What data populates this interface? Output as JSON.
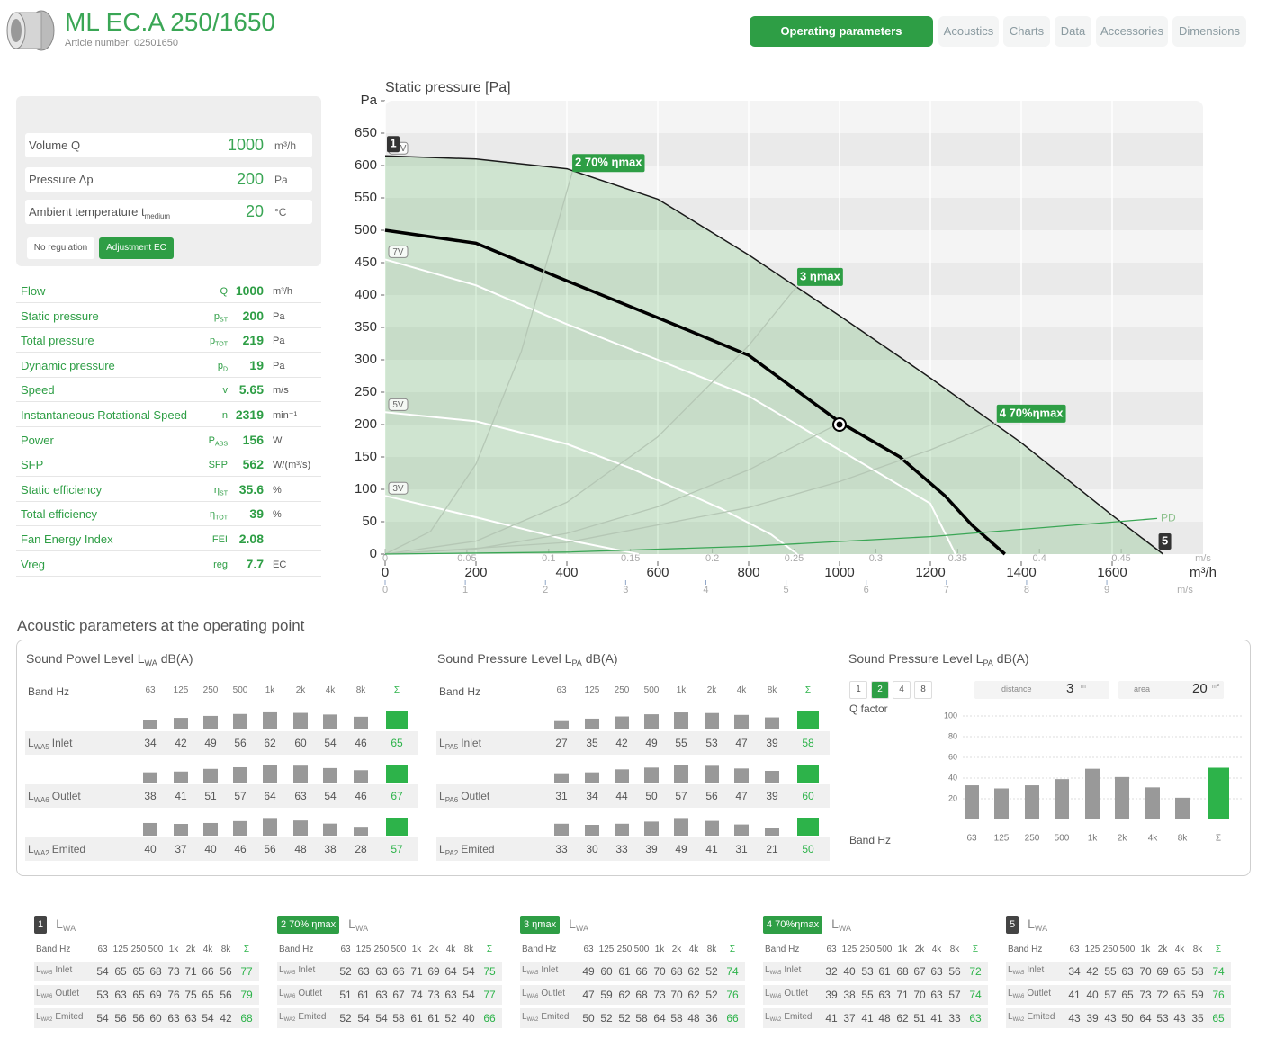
{
  "header": {
    "title": "ML EC.A 250/1650",
    "article": "Article number: 02501650"
  },
  "tabs": [
    {
      "label": "Operating parameters",
      "active": true
    },
    {
      "label": "Acoustics"
    },
    {
      "label": "Charts"
    },
    {
      "label": "Data"
    },
    {
      "label": "Accessories"
    },
    {
      "label": "Dimensions"
    }
  ],
  "inputs": [
    {
      "label": "Volume Q",
      "value": 1000,
      "unit": "m³/h"
    },
    {
      "label": "Pressure Δp",
      "value": 200,
      "unit": "Pa"
    },
    {
      "label": "Ambient temperature t",
      "label_sub": "medium",
      "value": 20,
      "unit": "°C"
    }
  ],
  "regulation": [
    {
      "label": "No regulation"
    },
    {
      "label": "Adjustment EC",
      "active": true
    }
  ],
  "params": [
    {
      "name": "Flow",
      "symbol": "Q",
      "value": 1000,
      "unit": "m³/h"
    },
    {
      "name": "Static pressure",
      "symbol": "p",
      "symbol_sub": "ST",
      "value": 200,
      "unit": "Pa"
    },
    {
      "name": "Total pressure",
      "symbol": "p",
      "symbol_sub": "TOT",
      "value": 219,
      "unit": "Pa"
    },
    {
      "name": "Dynamic pressure",
      "symbol": "p",
      "symbol_sub": "D",
      "value": 19,
      "unit": "Pa"
    },
    {
      "name": "Speed",
      "symbol": "v",
      "value": 5.65,
      "unit": "m/s"
    },
    {
      "name": "Instantaneous Rotational Speed",
      "symbol": "n",
      "value": 2319,
      "unit": "min⁻¹"
    },
    {
      "name": "Power",
      "symbol": "P",
      "symbol_sub": "ABS",
      "value": 156,
      "unit": "W"
    },
    {
      "name": "SFP",
      "symbol": "SFP",
      "value": 562,
      "unit": "W/(m³/s)"
    },
    {
      "name": "Static efficiency",
      "symbol": "η",
      "symbol_sub": "ST",
      "value": 35.6,
      "unit": "%"
    },
    {
      "name": "Total efficiency",
      "symbol": "η",
      "symbol_sub": "TOT",
      "value": 39,
      "unit": "%"
    },
    {
      "name": "Fan Energy Index",
      "symbol": "FEI",
      "value": 2.08
    },
    {
      "name": "Vreg",
      "symbol": "reg",
      "value": 7.7,
      "unit": "EC"
    }
  ],
  "chart_data": [
    {
      "type": "line",
      "title": "Static pressure [Pa]",
      "x_label": "m³/h",
      "xlim": [
        0,
        1800
      ],
      "xticks": [
        0,
        200,
        400,
        600,
        800,
        1000,
        1200,
        1400,
        1600
      ],
      "ylim": [
        0,
        700
      ],
      "yticks": [
        0,
        50,
        100,
        150,
        200,
        250,
        300,
        350,
        400,
        450,
        500,
        550,
        600,
        650,
        {
          "value": 700,
          "label": "Pa"
        }
      ],
      "grid": true,
      "x2": {
        "label": "m/s",
        "lim": [
          0,
          0.5
        ],
        "ticks": [
          0,
          0.05,
          0.1,
          0.15,
          0.2,
          0.25,
          0.3,
          0.35,
          0.4,
          0.45
        ]
      },
      "x3": {
        "label": "m/s",
        "lim": [
          0,
          10.2
        ],
        "ticks": [
          0,
          1,
          2,
          3,
          4,
          5,
          6,
          7,
          8,
          9
        ]
      },
      "series": [
        {
          "name": "10V",
          "kind": "voltage",
          "color": "#1a1a1a",
          "width": 1.5,
          "area_color": "rgba(76,175,80,0.22)",
          "start_marker": "1",
          "end_marker": "5",
          "x": [
            0,
            200,
            400,
            600,
            800,
            1000,
            1200,
            1400,
            1600,
            1712
          ],
          "y": [
            615,
            610,
            595,
            548,
            462,
            368,
            272,
            172,
            60,
            0
          ]
        },
        {
          "name": "7V",
          "kind": "voltage",
          "color": "#ffffff",
          "width": 2,
          "x": [
            0,
            200,
            400,
            600,
            800,
            1000,
            1200,
            1255
          ],
          "y": [
            455,
            415,
            355,
            300,
            244,
            161,
            78,
            0
          ]
        },
        {
          "name": "5V",
          "kind": "voltage",
          "color": "#ffffff",
          "width": 2,
          "x": [
            0,
            200,
            400,
            539,
            737,
            850,
            907
          ],
          "y": [
            219,
            205,
            170,
            133,
            71,
            30,
            0
          ]
        },
        {
          "name": "3V",
          "kind": "voltage",
          "color": "#ffffff",
          "width": 2,
          "x": [
            0,
            200,
            400,
            500,
            558
          ],
          "y": [
            90,
            57,
            22,
            8,
            0
          ]
        },
        {
          "kind": "system",
          "color": "#000000",
          "width": 3.5,
          "x": [
            0,
            200,
            400,
            600,
            800,
            1002,
            1133,
            1232,
            1291,
            1364
          ],
          "y": [
            500,
            480,
            422,
            365,
            307,
            203,
            150,
            90,
            45,
            0
          ]
        },
        {
          "name": "2 70% ηmax",
          "kind": "efficiency",
          "color": "#b5c7b5",
          "width": 1.3,
          "x": [
            0,
            100,
            200,
            300,
            412
          ],
          "y": [
            0,
            35,
            139,
            313,
            590
          ]
        },
        {
          "name": "3 ηmax",
          "kind": "efficiency",
          "color": "#b5c7b5",
          "width": 1.3,
          "x": [
            0,
            200,
            400,
            600,
            800,
            907
          ],
          "y": [
            0,
            20,
            80,
            181,
            322,
            414
          ]
        },
        {
          "kind": "line",
          "color": "#b5c7b5",
          "width": 1.3,
          "x": [
            0,
            200,
            400,
            600,
            800,
            1002
          ],
          "y": [
            0,
            8,
            32,
            73,
            130,
            203
          ]
        },
        {
          "name": "4 70%ηmax",
          "kind": "efficiency",
          "color": "#b5c7b5",
          "width": 1.3,
          "x": [
            0,
            400,
            800,
            1000,
            1200,
            1346
          ],
          "y": [
            0,
            18,
            72,
            112,
            161,
            203
          ]
        },
        {
          "name": "PD",
          "kind": "pd",
          "color": "#3aa655",
          "width": 1.3,
          "x": [
            0,
            400,
            800,
            1200,
            1699
          ],
          "y": [
            0,
            3,
            12,
            27,
            55
          ]
        }
      ]
    },
    {
      "type": "bar",
      "categories": [
        "63",
        "125",
        "250",
        "500",
        "1k",
        "2k",
        "4k",
        "8k",
        "Σ"
      ],
      "values": [
        33,
        30,
        33,
        39,
        49,
        41,
        31,
        21,
        50
      ],
      "colors": [
        "#999999",
        "#999999",
        "#999999",
        "#999999",
        "#999999",
        "#999999",
        "#999999",
        "#999999",
        "#2db34a"
      ],
      "ylim": [
        0,
        100
      ],
      "yticks": [
        20,
        40,
        60,
        80,
        100
      ],
      "grid": true
    }
  ],
  "acoustics": {
    "title": "Acoustic parameters at the operating point",
    "band_label": "Band Hz",
    "bands": [
      "63",
      "125",
      "250",
      "500",
      "1k",
      "2k",
      "4k",
      "8k",
      "Σ"
    ],
    "bar_color": "#999999",
    "sum_color": "#2db34a",
    "panels": [
      {
        "title": "Sound Powel Level L",
        "title_sub": "WA",
        "title_post": "dB(A)",
        "rows": [
          {
            "symbol": "L",
            "sub": "WA5",
            "name": "Inlet",
            "values": [
              34,
              42,
              49,
              56,
              62,
              60,
              54,
              46,
              65
            ]
          },
          {
            "symbol": "L",
            "sub": "WA6",
            "name": "Outlet",
            "values": [
              38,
              41,
              51,
              57,
              64,
              63,
              54,
              46,
              67
            ]
          },
          {
            "symbol": "L",
            "sub": "WA2",
            "name": "Emited",
            "values": [
              40,
              37,
              40,
              46,
              56,
              48,
              38,
              28,
              57
            ]
          }
        ]
      },
      {
        "title": "Sound Pressure Level L",
        "title_sub": "PA",
        "title_post": "dB(A)",
        "rows": [
          {
            "symbol": "L",
            "sub": "PA5",
            "name": "Inlet",
            "values": [
              27,
              35,
              42,
              49,
              55,
              53,
              47,
              39,
              58
            ]
          },
          {
            "symbol": "L",
            "sub": "PA6",
            "name": "Outlet",
            "values": [
              31,
              34,
              44,
              50,
              57,
              56,
              47,
              39,
              60
            ]
          },
          {
            "symbol": "L",
            "sub": "PA2",
            "name": "Emited",
            "values": [
              33,
              30,
              33,
              39,
              49,
              41,
              31,
              21,
              50
            ]
          }
        ]
      }
    ],
    "spl": {
      "title": "Sound Pressure Level L",
      "title_sub": "PA",
      "title_post": "dB(A)",
      "q_factor": {
        "label": "Q factor",
        "options": [
          1,
          2,
          4,
          8
        ],
        "selected": 2
      },
      "distance": {
        "label": "distance",
        "value": 3,
        "unit": "m"
      },
      "area": {
        "label": "area",
        "value": 20,
        "unit": "m²"
      },
      "band_label": "Band Hz"
    }
  },
  "points": [
    {
      "badge": "1",
      "color": "#444444",
      "title": "L",
      "title_sub": "WA",
      "band_label": "Band Hz",
      "rows": [
        {
          "symbol": "L",
          "sub": "WA5",
          "name": "Inlet",
          "values": [
            54,
            65,
            65,
            68,
            73,
            71,
            66,
            56,
            77
          ]
        },
        {
          "symbol": "L",
          "sub": "WA6",
          "name": "Outlet",
          "values": [
            53,
            63,
            65,
            69,
            76,
            75,
            65,
            56,
            79
          ]
        },
        {
          "symbol": "L",
          "sub": "WA2",
          "name": "Emited",
          "values": [
            54,
            56,
            56,
            60,
            63,
            63,
            54,
            42,
            68
          ]
        }
      ]
    },
    {
      "badge": "2 70% ηmax",
      "color": "#2e9e45",
      "title": "L",
      "title_sub": "WA",
      "band_label": "Band Hz",
      "rows": [
        {
          "symbol": "L",
          "sub": "WA5",
          "name": "Inlet",
          "values": [
            52,
            63,
            63,
            66,
            71,
            69,
            64,
            54,
            75
          ]
        },
        {
          "symbol": "L",
          "sub": "WA6",
          "name": "Outlet",
          "values": [
            51,
            61,
            63,
            67,
            74,
            73,
            63,
            54,
            77
          ]
        },
        {
          "symbol": "L",
          "sub": "WA2",
          "name": "Emited",
          "values": [
            52,
            54,
            54,
            58,
            61,
            61,
            52,
            40,
            66
          ]
        }
      ]
    },
    {
      "badge": "3 ηmax",
      "color": "#2e9e45",
      "title": "L",
      "title_sub": "WA",
      "band_label": "Band Hz",
      "rows": [
        {
          "symbol": "L",
          "sub": "WA5",
          "name": "Inlet",
          "values": [
            49,
            60,
            61,
            66,
            70,
            68,
            62,
            52,
            74
          ]
        },
        {
          "symbol": "L",
          "sub": "WA6",
          "name": "Outlet",
          "values": [
            47,
            59,
            62,
            68,
            73,
            70,
            62,
            52,
            76
          ]
        },
        {
          "symbol": "L",
          "sub": "WA2",
          "name": "Emited",
          "values": [
            50,
            52,
            52,
            58,
            64,
            58,
            48,
            36,
            66
          ]
        }
      ]
    },
    {
      "badge": "4 70%ηmax",
      "color": "#2e9e45",
      "title": "L",
      "title_sub": "WA",
      "band_label": "Band Hz",
      "rows": [
        {
          "symbol": "L",
          "sub": "WA5",
          "name": "Inlet",
          "values": [
            32,
            40,
            53,
            61,
            68,
            67,
            63,
            56,
            72
          ]
        },
        {
          "symbol": "L",
          "sub": "WA6",
          "name": "Outlet",
          "values": [
            39,
            38,
            55,
            63,
            71,
            70,
            63,
            57,
            74
          ]
        },
        {
          "symbol": "L",
          "sub": "WA2",
          "name": "Emited",
          "values": [
            41,
            37,
            41,
            48,
            62,
            51,
            41,
            33,
            63
          ]
        }
      ]
    },
    {
      "badge": "5",
      "color": "#444444",
      "title": "L",
      "title_sub": "WA",
      "band_label": "Band Hz",
      "rows": [
        {
          "symbol": "L",
          "sub": "WA5",
          "name": "Inlet",
          "values": [
            34,
            42,
            55,
            63,
            70,
            69,
            65,
            58,
            74
          ]
        },
        {
          "symbol": "L",
          "sub": "WA6",
          "name": "Outlet",
          "values": [
            41,
            40,
            57,
            65,
            73,
            72,
            65,
            59,
            76
          ]
        },
        {
          "symbol": "L",
          "sub": "WA2",
          "name": "Emited",
          "values": [
            43,
            39,
            43,
            50,
            64,
            53,
            43,
            35,
            65
          ]
        }
      ]
    }
  ]
}
